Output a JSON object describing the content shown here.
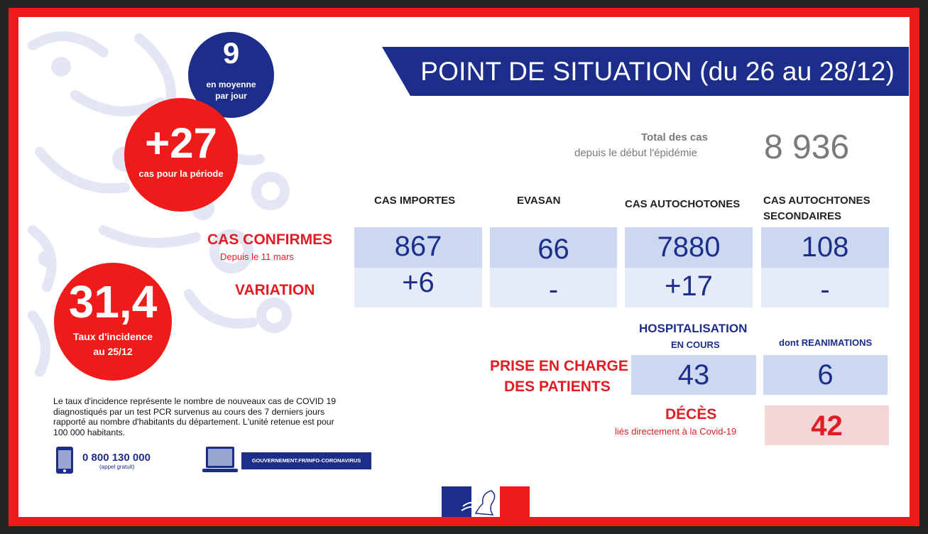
{
  "title": "POINT DE SITUATION (du 26 au 28/12)",
  "bubbles": {
    "daily_avg": {
      "value": "9",
      "label_line1": "en moyenne",
      "label_line2": "par jour"
    },
    "period_cases": {
      "value": "+27",
      "label": "cas pour la période"
    },
    "incidence": {
      "value": "31,4",
      "label_line1": "Taux d'incidence",
      "label_line2": "au 25/12"
    }
  },
  "total": {
    "label": "Total des cas",
    "sublabel": "depuis le début  l'épidémie",
    "value": "8 936"
  },
  "columns": [
    {
      "line1": "CAS IMPORTES",
      "line2": ""
    },
    {
      "line1": "EVASAN",
      "line2": ""
    },
    {
      "line1": "CAS AUTOCHOTONES",
      "line2": ""
    },
    {
      "line1": "CAS AUTOCHTONES",
      "line2": "SECONDAIRES"
    }
  ],
  "rows": {
    "confirmed_label": "CAS CONFIRMES",
    "confirmed_sub": "Depuis le 11 mars",
    "variation_label": "VARIATION",
    "confirmed": [
      "867",
      "66",
      "7880",
      "108"
    ],
    "variation": [
      "+6",
      "-",
      "+17",
      "-"
    ]
  },
  "care": {
    "label_line1": "PRISE EN CHARGE",
    "label_line2": "DES PATIENTS",
    "hosp_head": "HOSPITALISATION",
    "hosp_sub": "EN COURS",
    "rea_head": "dont REANIMATIONS",
    "hosp_value": "43",
    "rea_value": "6"
  },
  "deaths": {
    "label": "DÉCÈS",
    "sub": "liés directement à la Covid-19",
    "value": "42"
  },
  "footnote": {
    "l1": "Le taux d'incidence représente le nombre de nouveaux cas de COVID 19",
    "l2": "diagnostiqués par un test PCR survenus au cours des 7 derniers jours",
    "l3": "rapporté au nombre d'habitants du département. L'unité retenue est pour",
    "l4": "100 000 habitants."
  },
  "contact": {
    "phone": "0 800 130 000",
    "phone_note": "(appel gratuit)",
    "website": "GOUVERNEMENT.FR/INFO-CORONAVIRUS"
  },
  "colors": {
    "blue": "#1d2e8a",
    "red": "#ef1a1a",
    "label_red": "#e11d24",
    "cell_dark": "#cbd8f0",
    "cell_light": "#e5ebf7",
    "death_cell": "#f5d6d8"
  },
  "icons": [
    "phone-icon",
    "laptop-icon",
    "marianne-logo-icon"
  ]
}
